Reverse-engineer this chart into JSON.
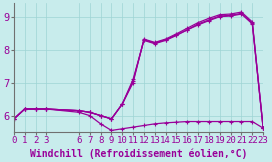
{
  "xlabel": "Windchill (Refroidissement éolien,°C)",
  "background_color": "#c8ecec",
  "line_color": "#990099",
  "xlim": [
    0,
    23
  ],
  "ylim": [
    5.5,
    9.4
  ],
  "xticks": [
    0,
    1,
    2,
    3,
    6,
    7,
    8,
    9,
    10,
    11,
    12,
    13,
    14,
    15,
    16,
    17,
    18,
    19,
    20,
    21,
    22,
    23
  ],
  "yticks": [
    6,
    7,
    8,
    9
  ],
  "curve_high1_x": [
    0,
    1,
    2,
    3,
    6,
    7,
    8,
    9,
    10,
    11,
    12,
    13,
    14,
    15,
    16,
    17,
    18,
    19,
    20,
    21,
    22,
    23
  ],
  "curve_high1_y": [
    5.9,
    6.2,
    6.2,
    6.2,
    6.15,
    6.1,
    6.0,
    5.9,
    6.35,
    7.05,
    8.3,
    8.2,
    8.3,
    8.45,
    8.6,
    8.75,
    8.88,
    9.0,
    9.02,
    9.08,
    8.78,
    5.62
  ],
  "curve_high2_x": [
    0,
    1,
    2,
    3,
    6,
    7,
    8,
    9,
    10,
    11,
    12,
    13,
    14,
    15,
    16,
    17,
    18,
    19,
    20,
    21,
    22,
    23
  ],
  "curve_high2_y": [
    5.9,
    6.2,
    6.2,
    6.2,
    6.15,
    6.1,
    6.0,
    5.9,
    6.35,
    7.1,
    8.28,
    8.18,
    8.28,
    8.43,
    8.6,
    8.78,
    8.9,
    9.02,
    9.04,
    9.1,
    8.8,
    5.62
  ],
  "curve_high3_x": [
    0,
    1,
    2,
    3,
    6,
    7,
    8,
    9,
    10,
    11,
    12,
    13,
    14,
    15,
    16,
    17,
    18,
    19,
    20,
    21,
    22,
    23
  ],
  "curve_high3_y": [
    5.9,
    6.2,
    6.2,
    6.2,
    6.15,
    6.1,
    6.0,
    5.9,
    6.35,
    7.0,
    8.32,
    8.22,
    8.32,
    8.48,
    8.65,
    8.82,
    8.95,
    9.06,
    9.08,
    9.14,
    8.84,
    5.62
  ],
  "curve_low_x": [
    0,
    1,
    2,
    3,
    6,
    7,
    8,
    9,
    10,
    11,
    12,
    13,
    14,
    15,
    16,
    17,
    18,
    19,
    20,
    21,
    22,
    23
  ],
  "curve_low_y": [
    5.9,
    6.2,
    6.2,
    6.2,
    6.1,
    6.0,
    5.75,
    5.55,
    5.6,
    5.65,
    5.7,
    5.75,
    5.78,
    5.8,
    5.82,
    5.82,
    5.82,
    5.82,
    5.82,
    5.82,
    5.82,
    5.62
  ],
  "grid_color": "#9ed4d4",
  "font_size": 6.5,
  "lw": 0.9
}
